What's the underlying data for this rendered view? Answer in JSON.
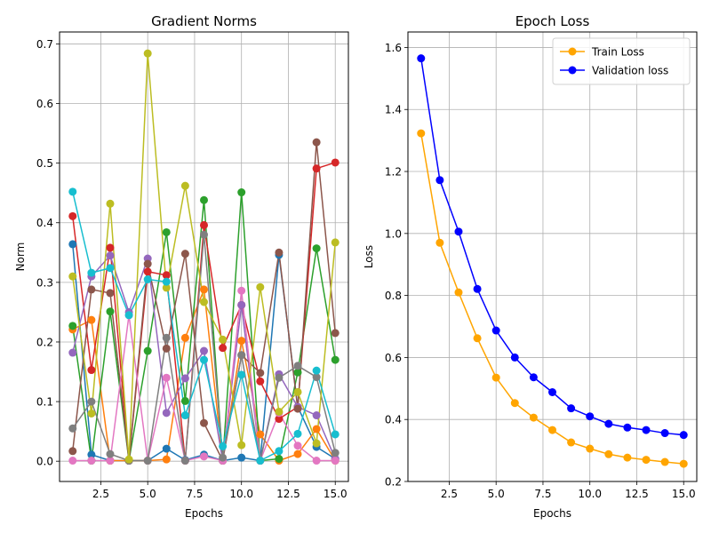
{
  "chart_data": [
    {
      "type": "line",
      "title": "Gradient Norms",
      "xlabel": "Epochs",
      "ylabel": "Norm",
      "xlim": [
        0.3,
        15.7
      ],
      "ylim": [
        -0.034,
        0.72
      ],
      "xticks": [
        2.5,
        5.0,
        7.5,
        10.0,
        12.5,
        15.0
      ],
      "xtick_labels": [
        "2.5",
        "5.0",
        "7.5",
        "10.0",
        "12.5",
        "15.0"
      ],
      "yticks": [
        0.0,
        0.1,
        0.2,
        0.3,
        0.4,
        0.5,
        0.6,
        0.7
      ],
      "ytick_labels": [
        "0.0",
        "0.1",
        "0.2",
        "0.3",
        "0.4",
        "0.5",
        "0.6",
        "0.7"
      ],
      "grid": true,
      "x": [
        1,
        2,
        3,
        4,
        5,
        6,
        7,
        8,
        9,
        10,
        11,
        12,
        13,
        14,
        15
      ],
      "series": [
        {
          "color": "#1f77b4",
          "values": [
            0.364,
            0.011,
            0.001,
            0.001,
            0.001,
            0.021,
            0.002,
            0.011,
            0.001,
            0.006,
            0.001,
            0.346,
            0.091,
            0.024,
            0.004
          ]
        },
        {
          "color": "#ff7f0e",
          "values": [
            0.221,
            0.237,
            0.001,
            0.001,
            0.001,
            0.003,
            0.207,
            0.288,
            0.001,
            0.202,
            0.045,
            0.001,
            0.012,
            0.054,
            0.001
          ]
        },
        {
          "color": "#2ca02c",
          "values": [
            0.227,
            0.001,
            0.251,
            0.001,
            0.185,
            0.384,
            0.101,
            0.438,
            0.001,
            0.451,
            0.001,
            0.004,
            0.149,
            0.357,
            0.17
          ]
        },
        {
          "color": "#d62728",
          "values": [
            0.411,
            0.153,
            0.358,
            0.001,
            0.318,
            0.312,
            0.001,
            0.396,
            0.19,
            0.262,
            0.134,
            0.071,
            0.091,
            0.491,
            0.501
          ]
        },
        {
          "color": "#9467bd",
          "values": [
            0.182,
            0.31,
            0.345,
            0.25,
            0.34,
            0.081,
            0.139,
            0.185,
            0.001,
            0.262,
            0.001,
            0.146,
            0.091,
            0.077,
            0.004
          ]
        },
        {
          "color": "#8c564b",
          "values": [
            0.017,
            0.288,
            0.282,
            0.001,
            0.331,
            0.189,
            0.348,
            0.064,
            0.001,
            0.178,
            0.148,
            0.35,
            0.088,
            0.535,
            0.215
          ]
        },
        {
          "color": "#e377c2",
          "values": [
            0.001,
            0.001,
            0.001,
            0.245,
            0.001,
            0.14,
            0.001,
            0.008,
            0.001,
            0.286,
            0.001,
            0.081,
            0.026,
            0.001,
            0.001
          ]
        },
        {
          "color": "#7f7f7f",
          "values": [
            0.055,
            0.1,
            0.012,
            0.001,
            0.001,
            0.207,
            0.001,
            0.38,
            0.006,
            0.178,
            0.001,
            0.14,
            0.16,
            0.141,
            0.014
          ]
        },
        {
          "color": "#bcbd22",
          "values": [
            0.31,
            0.08,
            0.432,
            0.003,
            0.684,
            0.291,
            0.462,
            0.267,
            0.204,
            0.027,
            0.292,
            0.083,
            0.116,
            0.03,
            0.367
          ]
        },
        {
          "color": "#17becf",
          "values": [
            0.452,
            0.316,
            0.324,
            0.245,
            0.305,
            0.301,
            0.077,
            0.17,
            0.025,
            0.145,
            0.001,
            0.017,
            0.046,
            0.152,
            0.045
          ]
        }
      ]
    },
    {
      "type": "line",
      "title": "Epoch Loss",
      "xlabel": "Epochs",
      "ylabel": "Loss",
      "xlim": [
        0.3,
        15.7
      ],
      "ylim": [
        0.2,
        1.65
      ],
      "xticks": [
        2.5,
        5.0,
        7.5,
        10.0,
        12.5,
        15.0
      ],
      "xtick_labels": [
        "2.5",
        "5.0",
        "7.5",
        "10.0",
        "12.5",
        "15.0"
      ],
      "yticks": [
        0.2,
        0.4,
        0.6,
        0.8,
        1.0,
        1.2,
        1.4,
        1.6
      ],
      "ytick_labels": [
        "0.2",
        "0.4",
        "0.6",
        "0.8",
        "1.0",
        "1.2",
        "1.4",
        "1.6"
      ],
      "grid": true,
      "legend": "top-right",
      "x": [
        1,
        2,
        3,
        4,
        5,
        6,
        7,
        8,
        9,
        10,
        11,
        12,
        13,
        14,
        15
      ],
      "series": [
        {
          "name": "Train Loss",
          "color": "#ffa500",
          "values": [
            1.323,
            0.97,
            0.81,
            0.662,
            0.535,
            0.453,
            0.406,
            0.366,
            0.326,
            0.306,
            0.288,
            0.277,
            0.27,
            0.263,
            0.257
          ]
        },
        {
          "name": "Validation loss",
          "color": "#0000ff",
          "values": [
            1.565,
            1.172,
            1.006,
            0.821,
            0.687,
            0.6,
            0.536,
            0.488,
            0.436,
            0.41,
            0.386,
            0.374,
            0.366,
            0.356,
            0.35
          ]
        }
      ]
    }
  ]
}
